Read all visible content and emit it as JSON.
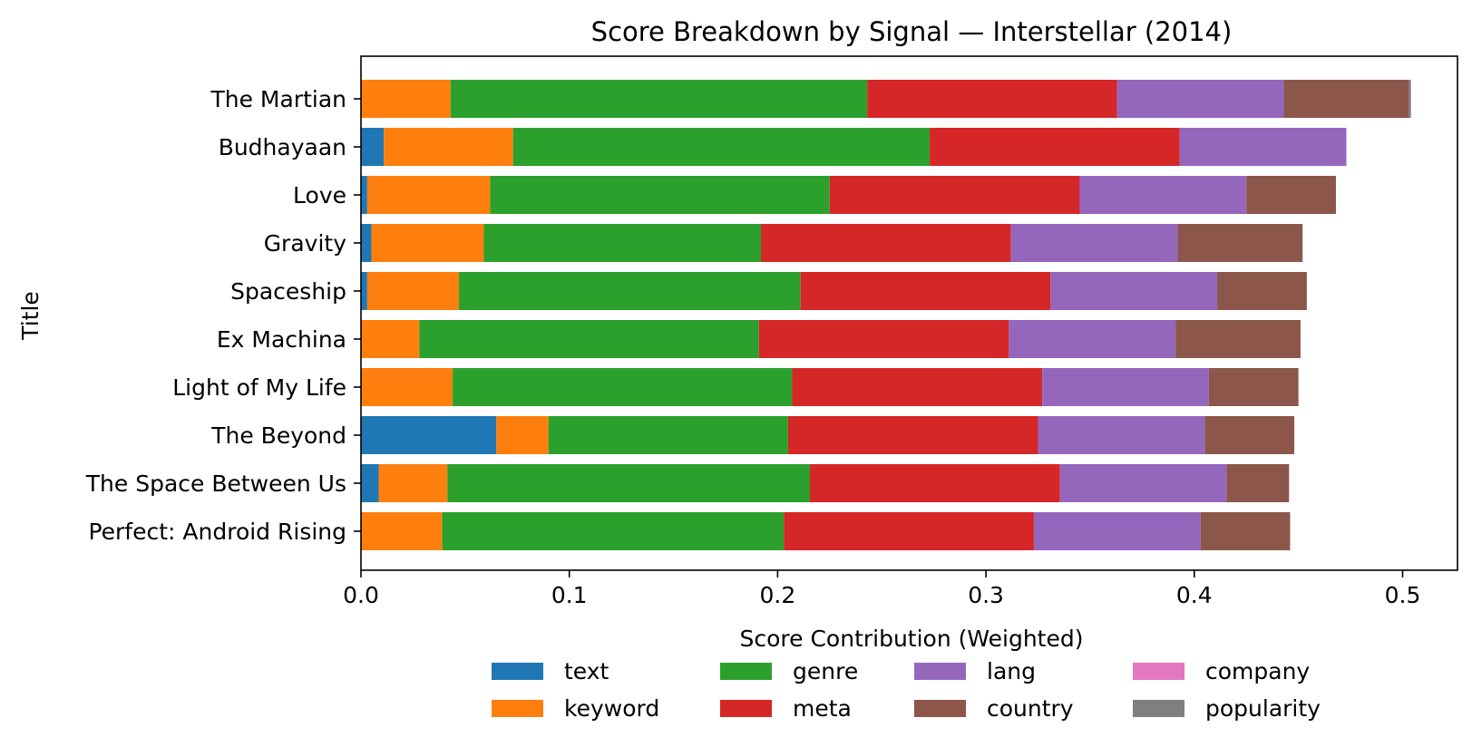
{
  "chart_data": {
    "type": "bar",
    "orientation": "horizontal",
    "stacked": true,
    "title": "Score Breakdown by Signal — Interstellar (2014)",
    "xlabel": "Score Contribution (Weighted)",
    "ylabel": "Title",
    "xlim": [
      0,
      0.53
    ],
    "xticks": [
      "0.0",
      "0.1",
      "0.2",
      "0.3",
      "0.4",
      "0.5"
    ],
    "grid": false,
    "legend_position": "bottom-center",
    "categories": [
      "The Martian",
      "Budhayaan",
      "Love",
      "Gravity",
      "Spaceship",
      "Ex Machina",
      "Light of My Life",
      "The Beyond",
      "The Space Between Us",
      "Perfect: Android Rising"
    ],
    "series": [
      {
        "name": "text",
        "color": "#1f77b4",
        "values": [
          0.0,
          0.011,
          0.003,
          0.005,
          0.003,
          0.0,
          0.0,
          0.065,
          0.0085,
          0.0
        ]
      },
      {
        "name": "keyword",
        "color": "#ff7f0e",
        "values": [
          0.043,
          0.062,
          0.059,
          0.054,
          0.044,
          0.028,
          0.044,
          0.025,
          0.033,
          0.039
        ]
      },
      {
        "name": "genre",
        "color": "#2ca02c",
        "values": [
          0.2,
          0.2,
          0.163,
          0.133,
          0.164,
          0.163,
          0.163,
          0.115,
          0.174,
          0.164
        ]
      },
      {
        "name": "meta",
        "color": "#d62728",
        "values": [
          0.12,
          0.12,
          0.12,
          0.12,
          0.12,
          0.12,
          0.12,
          0.12,
          0.12,
          0.12
        ]
      },
      {
        "name": "lang",
        "color": "#9467bd",
        "values": [
          0.08,
          0.08,
          0.08,
          0.08,
          0.08,
          0.08,
          0.08,
          0.08,
          0.08,
          0.08
        ]
      },
      {
        "name": "country",
        "color": "#8c564b",
        "values": [
          0.06,
          0.0,
          0.043,
          0.06,
          0.043,
          0.06,
          0.043,
          0.043,
          0.03,
          0.043
        ]
      },
      {
        "name": "company",
        "color": "#e377c2",
        "values": [
          0,
          0,
          0,
          0,
          0,
          0,
          0,
          0,
          0,
          0
        ]
      },
      {
        "name": "popularity",
        "color": "#7f7f7f",
        "values": [
          0.001,
          0,
          0,
          0,
          0,
          0,
          0,
          0,
          0,
          0
        ]
      }
    ]
  }
}
